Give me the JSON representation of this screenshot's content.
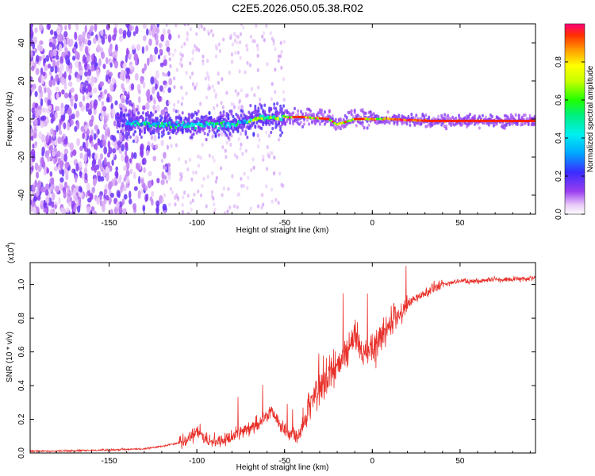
{
  "title": "C2E5.2026.050.05.38.R02",
  "chart_data": [
    {
      "type": "heatmap",
      "title": "C2E5.2026.050.05.38.R02",
      "xlabel": "Height of straight line (km)",
      "ylabel": "Frequency (Hz)",
      "xlim": [
        -195,
        93
      ],
      "ylim": [
        -50,
        50
      ],
      "xticks": [
        -150,
        -100,
        -50,
        0,
        50
      ],
      "yticks": [
        -40,
        -20,
        0,
        20,
        40
      ],
      "grid": false,
      "description_series": [
        {
          "name": "main ridge",
          "x": [
            -140,
            -120,
            -100,
            -80,
            -65,
            -50,
            -40,
            -25,
            -20,
            -10,
            0,
            10,
            30,
            60,
            93
          ],
          "y": [
            -2,
            -3,
            -3,
            -3,
            0,
            1,
            1,
            0,
            -3,
            0,
            0,
            0,
            -1,
            -1,
            -1
          ]
        }
      ],
      "colorbar": {
        "label": "Normalized spectral amplitude",
        "range": [
          0,
          1
        ],
        "ticks": [
          "0.0",
          "0.2",
          "0.4",
          "0.6",
          "0.8"
        ]
      }
    },
    {
      "type": "line",
      "xlabel": "Height of straight line (km)",
      "ylabel": "SNR (10 * v/v)",
      "multiplier_label": "(x10",
      "multiplier_exp": "4",
      "multiplier_close": ")",
      "xlim": [
        -195,
        93
      ],
      "ylim": [
        0,
        1.13
      ],
      "xticks": [
        -150,
        -100,
        -50,
        0,
        50
      ],
      "yticks": [
        "0.0",
        "0.2",
        "0.4",
        "0.6",
        "0.8",
        "1.0"
      ],
      "color": "#e8302a",
      "series": [
        {
          "name": "SNR",
          "x": [
            -195,
            -160,
            -130,
            -120,
            -110,
            -102,
            -100,
            -95,
            -85,
            -80,
            -75,
            -68,
            -62,
            -58,
            -52,
            -48,
            -42,
            -38,
            -34,
            -30,
            -25,
            -20,
            -15,
            -10,
            -5,
            0,
            5,
            10,
            15,
            20,
            25,
            30,
            35,
            40,
            45,
            50,
            60,
            70,
            80,
            93
          ],
          "values": [
            0.01,
            0.015,
            0.025,
            0.04,
            0.06,
            0.1,
            0.13,
            0.08,
            0.07,
            0.1,
            0.13,
            0.15,
            0.2,
            0.25,
            0.16,
            0.12,
            0.1,
            0.2,
            0.32,
            0.38,
            0.45,
            0.5,
            0.58,
            0.7,
            0.6,
            0.62,
            0.7,
            0.75,
            0.82,
            0.88,
            0.92,
            0.95,
            0.98,
            1.0,
            1.01,
            1.02,
            1.02,
            1.03,
            1.03,
            1.04
          ]
        }
      ]
    }
  ]
}
